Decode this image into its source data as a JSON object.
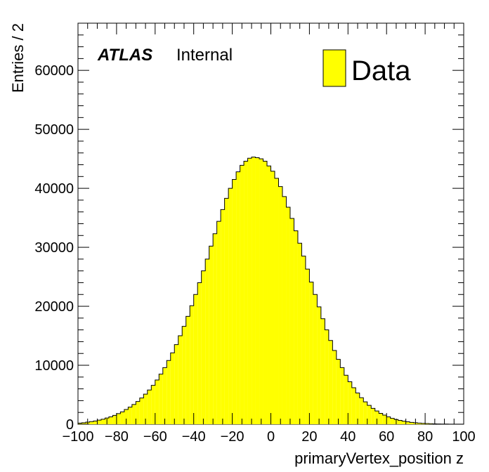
{
  "chart_data": {
    "type": "bar",
    "xlabel": "primaryVertex_position z",
    "ylabel": "Entries / 2",
    "xlim": [
      -100,
      100
    ],
    "ylim": [
      0,
      68000
    ],
    "bin_width": 2,
    "x_ticks": [
      -100,
      -80,
      -60,
      -40,
      -20,
      0,
      20,
      40,
      60,
      80,
      100
    ],
    "y_ticks": [
      0,
      10000,
      20000,
      30000,
      40000,
      50000,
      60000
    ],
    "y_tick_labels": [
      "0",
      "10000",
      "20000",
      "30000",
      "40000",
      "50000",
      "60000"
    ],
    "x_tick_labels": [
      "−100",
      "−80",
      "−60",
      "−40",
      "−20",
      "0",
      "20",
      "40",
      "60",
      "80",
      "100"
    ],
    "bin_edges_start": -100,
    "values": [
      200,
      250,
      350,
      450,
      550,
      700,
      850,
      1050,
      1250,
      1500,
      1800,
      2100,
      2500,
      2900,
      3350,
      3850,
      4450,
      5100,
      5800,
      6600,
      7500,
      8500,
      9600,
      10800,
      12100,
      13500,
      15000,
      16600,
      18300,
      20100,
      22000,
      24000,
      26000,
      28000,
      30200,
      32300,
      34400,
      36400,
      38300,
      40000,
      41500,
      42800,
      43900,
      44600,
      45100,
      45300,
      45200,
      45000,
      44600,
      43800,
      42900,
      41700,
      40300,
      38600,
      36800,
      34900,
      32800,
      30700,
      28500,
      26300,
      24100,
      22000,
      19900,
      17900,
      16000,
      14200,
      12500,
      11000,
      9600,
      8300,
      7200,
      6200,
      5300,
      4500,
      3800,
      3200,
      2700,
      2250,
      1850,
      1550,
      1250,
      1000,
      800,
      650,
      520,
      410,
      320,
      250,
      195,
      150,
      115,
      88,
      66,
      50,
      37,
      27,
      20,
      15,
      11,
      8
    ],
    "fill_color": "#ffff00",
    "line_color": "#000000",
    "legend": {
      "label": "Data",
      "position": "top-right"
    },
    "annotation": {
      "experiment": "ATLAS",
      "status": "Internal"
    }
  }
}
